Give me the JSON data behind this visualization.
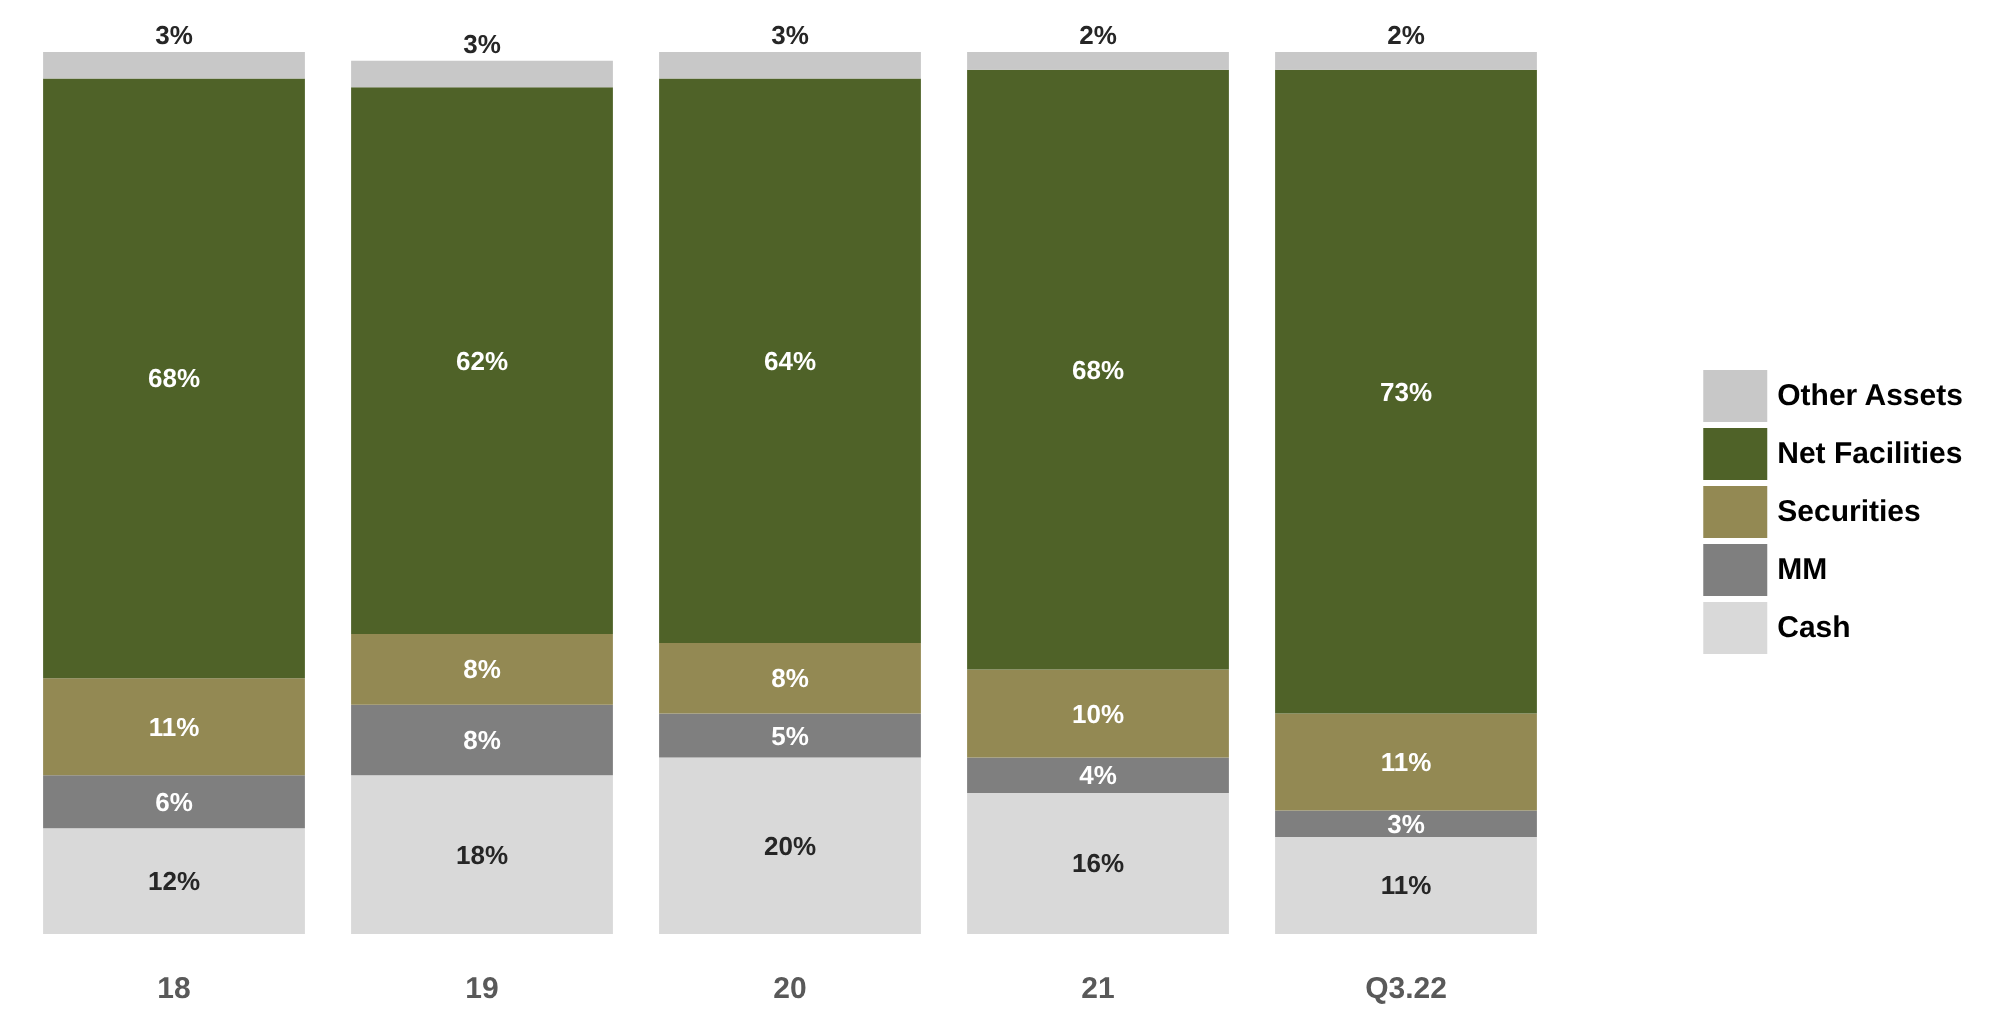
{
  "chart_data": {
    "type": "bar",
    "stacked": true,
    "legend": "right",
    "tick_labels": "x",
    "categories": [
      "18",
      "19",
      "20",
      "21",
      "Q3.22"
    ],
    "series": [
      {
        "name": "Cash",
        "color": "#d9d9d9",
        "values": [
          12,
          18,
          20,
          16,
          11
        ],
        "value_labels": [
          "12%",
          "18%",
          "20%",
          "16%",
          "11%"
        ]
      },
      {
        "name": "MM",
        "color": "#7f7f7f",
        "values": [
          6,
          8,
          5,
          4,
          3
        ],
        "value_labels": [
          "6%",
          "8%",
          "5%",
          "4%",
          "3%"
        ]
      },
      {
        "name": "Securities",
        "color": "#938953",
        "values": [
          11,
          8,
          8,
          10,
          11
        ],
        "value_labels": [
          "11%",
          "8%",
          "8%",
          "10%",
          "11%"
        ]
      },
      {
        "name": "Net Facilities",
        "color": "#4f6228",
        "values": [
          68,
          62,
          64,
          68,
          73
        ],
        "value_labels": [
          "68%",
          "62%",
          "64%",
          "68%",
          "73%"
        ]
      },
      {
        "name": "Other Assets",
        "color": "#c8c8c8",
        "values": [
          3,
          3,
          3,
          2,
          2
        ],
        "value_labels": [
          "3%",
          "3%",
          "3%",
          "2%",
          "2%"
        ]
      }
    ]
  }
}
